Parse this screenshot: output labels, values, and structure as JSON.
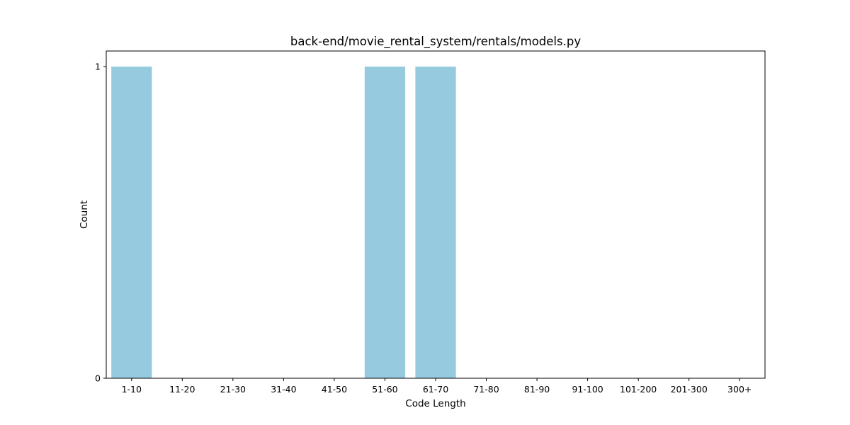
{
  "chart_data": {
    "type": "bar",
    "title": "back-end/movie_rental_system/rentals/models.py",
    "xlabel": "Code Length",
    "ylabel": "Count",
    "categories": [
      "1-10",
      "11-20",
      "21-30",
      "31-40",
      "41-50",
      "51-60",
      "61-70",
      "71-80",
      "81-90",
      "91-100",
      "101-200",
      "201-300",
      "300+"
    ],
    "values": [
      1,
      0,
      0,
      0,
      0,
      1,
      1,
      0,
      0,
      0,
      0,
      0,
      0
    ],
    "ylim": [
      0,
      1.05
    ],
    "yticks": [
      0,
      1
    ],
    "bar_color": "#96cadf",
    "grid": false,
    "legend": "none"
  }
}
